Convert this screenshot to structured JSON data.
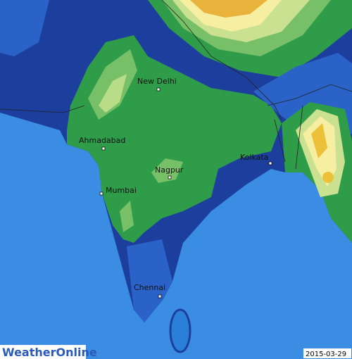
{
  "map": {
    "cities": [
      {
        "label": "New Delhi"
      },
      {
        "label": "Ahmadabad"
      },
      {
        "label": "Kolkata"
      },
      {
        "label": "Nagpur"
      },
      {
        "label": "Mumbai"
      },
      {
        "label": "Chennai"
      }
    ],
    "logo": "WeatherOnline",
    "date": "2015-03-29"
  }
}
